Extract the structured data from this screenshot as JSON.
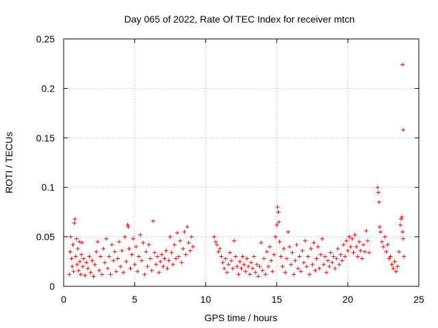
{
  "chart_data": {
    "type": "scatter",
    "title": "Day 065 of 2022, Rate Of TEC Index for receiver mtcn",
    "xlabel": "GPS time / hours",
    "ylabel": "ROTI / TECUs",
    "xlim": [
      0,
      25
    ],
    "ylim": [
      0,
      0.25
    ],
    "xticks": [
      "0",
      "5",
      "10",
      "15",
      "20",
      "25"
    ],
    "yticks": [
      "0",
      "0.05",
      "0.1",
      "0.15",
      "0.2",
      "0.25"
    ],
    "grid": true,
    "marker": "+",
    "color": "#ff0000",
    "series": [
      {
        "points": [
          [
            0.4,
            0.012
          ],
          [
            0.45,
            0.035
          ],
          [
            0.5,
            0.05
          ],
          [
            0.55,
            0.028
          ],
          [
            0.6,
            0.02
          ],
          [
            0.65,
            0.042
          ],
          [
            0.7,
            0.015
          ],
          [
            0.75,
            0.064
          ],
          [
            0.8,
            0.068
          ],
          [
            0.85,
            0.03
          ],
          [
            0.9,
            0.048
          ],
          [
            0.95,
            0.022
          ],
          [
            1.0,
            0.038
          ],
          [
            1.05,
            0.016
          ],
          [
            1.1,
            0.045
          ],
          [
            1.15,
            0.025
          ],
          [
            1.2,
            0.012
          ],
          [
            1.25,
            0.032
          ],
          [
            1.3,
            0.044
          ],
          [
            1.35,
            0.02
          ],
          [
            1.4,
            0.028
          ],
          [
            1.5,
            0.011
          ],
          [
            1.6,
            0.024
          ],
          [
            1.7,
            0.018
          ],
          [
            1.8,
            0.03
          ],
          [
            1.9,
            0.014
          ],
          [
            2.0,
            0.026
          ],
          [
            2.1,
            0.01
          ],
          [
            2.2,
            0.022
          ],
          [
            2.3,
            0.035
          ],
          [
            2.4,
            0.045
          ],
          [
            2.5,
            0.016
          ],
          [
            2.6,
            0.03
          ],
          [
            2.7,
            0.012
          ],
          [
            2.8,
            0.038
          ],
          [
            2.9,
            0.024
          ],
          [
            3.0,
            0.048
          ],
          [
            3.1,
            0.018
          ],
          [
            3.2,
            0.03
          ],
          [
            3.3,
            0.012
          ],
          [
            3.4,
            0.042
          ],
          [
            3.5,
            0.026
          ],
          [
            3.6,
            0.035
          ],
          [
            3.7,
            0.015
          ],
          [
            3.8,
            0.028
          ],
          [
            3.9,
            0.045
          ],
          [
            4.0,
            0.02
          ],
          [
            4.1,
            0.036
          ],
          [
            4.2,
            0.014
          ],
          [
            4.3,
            0.05
          ],
          [
            4.4,
            0.025
          ],
          [
            4.5,
            0.062
          ],
          [
            4.55,
            0.06
          ],
          [
            4.6,
            0.038
          ],
          [
            4.7,
            0.018
          ],
          [
            4.8,
            0.032
          ],
          [
            4.9,
            0.048
          ],
          [
            5.0,
            0.022
          ],
          [
            5.1,
            0.04
          ],
          [
            5.2,
            0.015
          ],
          [
            5.3,
            0.03
          ],
          [
            5.4,
            0.052
          ],
          [
            5.5,
            0.026
          ],
          [
            5.6,
            0.044
          ],
          [
            5.7,
            0.012
          ],
          [
            5.8,
            0.035
          ],
          [
            5.9,
            0.02
          ],
          [
            6.0,
            0.042
          ],
          [
            6.1,
            0.028
          ],
          [
            6.2,
            0.016
          ],
          [
            6.3,
            0.066
          ],
          [
            6.4,
            0.034
          ],
          [
            6.5,
            0.022
          ],
          [
            6.6,
            0.03
          ],
          [
            6.7,
            0.014
          ],
          [
            6.8,
            0.025
          ],
          [
            6.9,
            0.032
          ],
          [
            7.0,
            0.02
          ],
          [
            7.1,
            0.028
          ],
          [
            7.2,
            0.036
          ],
          [
            7.3,
            0.018
          ],
          [
            7.4,
            0.026
          ],
          [
            7.5,
            0.05
          ],
          [
            7.6,
            0.034
          ],
          [
            7.7,
            0.022
          ],
          [
            7.8,
            0.042
          ],
          [
            7.9,
            0.028
          ],
          [
            8.0,
            0.054
          ],
          [
            8.1,
            0.03
          ],
          [
            8.2,
            0.046
          ],
          [
            8.3,
            0.024
          ],
          [
            8.4,
            0.038
          ],
          [
            8.5,
            0.055
          ],
          [
            8.6,
            0.032
          ],
          [
            8.7,
            0.06
          ],
          [
            8.8,
            0.044
          ],
          [
            8.9,
            0.036
          ],
          [
            9.0,
            0.05
          ],
          [
            9.1,
            0.04
          ],
          [
            10.6,
            0.05
          ],
          [
            10.7,
            0.045
          ],
          [
            10.8,
            0.042
          ],
          [
            10.9,
            0.035
          ],
          [
            11.0,
            0.038
          ],
          [
            11.1,
            0.03
          ],
          [
            11.2,
            0.024
          ],
          [
            11.3,
            0.018
          ],
          [
            11.4,
            0.028
          ],
          [
            11.5,
            0.014
          ],
          [
            11.6,
            0.022
          ],
          [
            11.7,
            0.034
          ],
          [
            11.8,
            0.026
          ],
          [
            11.9,
            0.018
          ],
          [
            12.0,
            0.046
          ],
          [
            12.1,
            0.03
          ],
          [
            12.2,
            0.02
          ],
          [
            12.3,
            0.012
          ],
          [
            12.4,
            0.025
          ],
          [
            12.5,
            0.018
          ],
          [
            12.6,
            0.03
          ],
          [
            12.7,
            0.022
          ],
          [
            12.8,
            0.015
          ],
          [
            12.9,
            0.028
          ],
          [
            13.0,
            0.02
          ],
          [
            13.1,
            0.012
          ],
          [
            13.2,
            0.024
          ],
          [
            13.3,
            0.018
          ],
          [
            13.4,
            0.03
          ],
          [
            13.5,
            0.014
          ],
          [
            13.6,
            0.022
          ],
          [
            13.7,
            0.01
          ],
          [
            13.8,
            0.02
          ],
          [
            13.9,
            0.044
          ],
          [
            14.0,
            0.016
          ],
          [
            14.1,
            0.028
          ],
          [
            14.2,
            0.012
          ],
          [
            14.3,
            0.035
          ],
          [
            14.4,
            0.02
          ],
          [
            14.5,
            0.04
          ],
          [
            14.6,
            0.026
          ],
          [
            14.7,
            0.015
          ],
          [
            14.8,
            0.032
          ],
          [
            14.9,
            0.05
          ],
          [
            15.0,
            0.062
          ],
          [
            15.05,
            0.08
          ],
          [
            15.1,
            0.075
          ],
          [
            15.15,
            0.065
          ],
          [
            15.2,
            0.045
          ],
          [
            15.3,
            0.03
          ],
          [
            15.4,
            0.02
          ],
          [
            15.5,
            0.038
          ],
          [
            15.6,
            0.014
          ],
          [
            15.7,
            0.028
          ],
          [
            15.8,
            0.055
          ],
          [
            15.9,
            0.04
          ],
          [
            16.0,
            0.022
          ],
          [
            16.1,
            0.034
          ],
          [
            16.2,
            0.012
          ],
          [
            16.3,
            0.026
          ],
          [
            16.4,
            0.042
          ],
          [
            16.5,
            0.018
          ],
          [
            16.6,
            0.03
          ],
          [
            16.7,
            0.015
          ],
          [
            16.8,
            0.036
          ],
          [
            16.9,
            0.024
          ],
          [
            17.0,
            0.046
          ],
          [
            17.1,
            0.02
          ],
          [
            17.2,
            0.03
          ],
          [
            17.3,
            0.012
          ],
          [
            17.4,
            0.038
          ],
          [
            17.5,
            0.022
          ],
          [
            17.6,
            0.044
          ],
          [
            17.7,
            0.016
          ],
          [
            17.8,
            0.028
          ],
          [
            17.9,
            0.04
          ],
          [
            18.0,
            0.018
          ],
          [
            18.1,
            0.032
          ],
          [
            18.2,
            0.048
          ],
          [
            18.3,
            0.022
          ],
          [
            18.4,
            0.03
          ],
          [
            18.5,
            0.014
          ],
          [
            18.6,
            0.026
          ],
          [
            18.7,
            0.02
          ],
          [
            18.8,
            0.034
          ],
          [
            18.9,
            0.024
          ],
          [
            19.0,
            0.03
          ],
          [
            19.1,
            0.018
          ],
          [
            19.2,
            0.028
          ],
          [
            19.3,
            0.038
          ],
          [
            19.4,
            0.022
          ],
          [
            19.5,
            0.032
          ],
          [
            19.6,
            0.026
          ],
          [
            19.7,
            0.042
          ],
          [
            19.8,
            0.03
          ],
          [
            19.9,
            0.046
          ],
          [
            20.0,
            0.036
          ],
          [
            20.1,
            0.05
          ],
          [
            20.2,
            0.04
          ],
          [
            20.3,
            0.048
          ],
          [
            20.4,
            0.034
          ],
          [
            20.5,
            0.052
          ],
          [
            20.6,
            0.04
          ],
          [
            20.7,
            0.03
          ],
          [
            20.8,
            0.045
          ],
          [
            20.9,
            0.036
          ],
          [
            21.0,
            0.028
          ],
          [
            21.1,
            0.042
          ],
          [
            21.2,
            0.035
          ],
          [
            21.3,
            0.056
          ],
          [
            21.4,
            0.046
          ],
          [
            21.5,
            0.034
          ],
          [
            22.1,
            0.1
          ],
          [
            22.15,
            0.095
          ],
          [
            22.2,
            0.085
          ],
          [
            22.25,
            0.06
          ],
          [
            22.3,
            0.055
          ],
          [
            22.4,
            0.045
          ],
          [
            22.5,
            0.04
          ],
          [
            22.6,
            0.05
          ],
          [
            22.7,
            0.035
          ],
          [
            22.8,
            0.042
          ],
          [
            22.9,
            0.028
          ],
          [
            23.0,
            0.03
          ],
          [
            23.1,
            0.022
          ],
          [
            23.2,
            0.018
          ],
          [
            23.3,
            0.025
          ],
          [
            23.4,
            0.015
          ],
          [
            23.5,
            0.02
          ],
          [
            23.6,
            0.035
          ],
          [
            23.7,
            0.062
          ],
          [
            23.75,
            0.068
          ],
          [
            23.8,
            0.07
          ],
          [
            23.85,
            0.055
          ],
          [
            23.9,
            0.048
          ],
          [
            23.95,
            0.03
          ],
          [
            23.85,
            0.224
          ],
          [
            23.9,
            0.158
          ]
        ]
      }
    ]
  }
}
